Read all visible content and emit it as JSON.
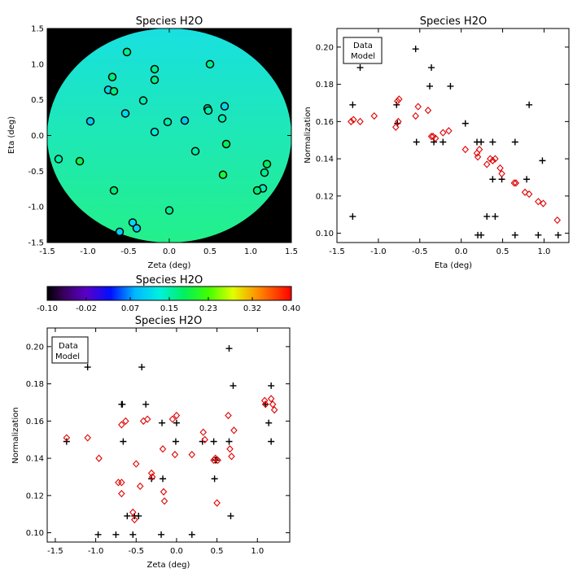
{
  "colors": {
    "data_marker": "#000000",
    "model_marker": "#e00000",
    "map_background": "#000000",
    "map_disk_top": "#19e0e0",
    "map_disk_bottom": "#23f08a",
    "map_circle_outline": "#000000"
  },
  "legend": {
    "data": "Data",
    "model": "Model"
  },
  "colorbar": {
    "title": "Species H2O",
    "min": -0.1,
    "max": 0.4,
    "colormap": "rainbow",
    "tick_labels": [
      "-0.10",
      "-0.02",
      "0.07",
      "0.15",
      "0.23",
      "0.32",
      "0.40"
    ]
  },
  "chart_data": [
    {
      "id": "map",
      "type": "scatter",
      "title": "Species H2O",
      "xlabel": "Zeta (deg)",
      "ylabel": "Eta (deg)",
      "xlim": [
        -1.5,
        1.5
      ],
      "ylim": [
        -1.5,
        1.5
      ],
      "x_ticks": [
        "-1.5",
        "-1.0",
        "-0.5",
        "0.0",
        "0.5",
        "1.0",
        "1.5"
      ],
      "y_ticks": [
        "-1.5",
        "-1.0",
        "-0.5",
        "0.0",
        "0.5",
        "1.0",
        "1.5"
      ],
      "background": "black outside circular field, green/cyan gradient inside",
      "points": [
        {
          "x": -0.52,
          "y": 1.17,
          "value": 0.16
        },
        {
          "x": -0.18,
          "y": 0.93,
          "value": 0.16
        },
        {
          "x": 0.5,
          "y": 1.0,
          "value": 0.16
        },
        {
          "x": -0.7,
          "y": 0.82,
          "value": 0.17
        },
        {
          "x": -0.18,
          "y": 0.78,
          "value": 0.16
        },
        {
          "x": -0.75,
          "y": 0.64,
          "value": 0.11
        },
        {
          "x": -0.68,
          "y": 0.62,
          "value": 0.17
        },
        {
          "x": -0.32,
          "y": 0.49,
          "value": 0.15
        },
        {
          "x": 0.68,
          "y": 0.41,
          "value": 0.11
        },
        {
          "x": 0.47,
          "y": 0.38,
          "value": 0.15
        },
        {
          "x": 0.48,
          "y": 0.35,
          "value": 0.15
        },
        {
          "x": -0.54,
          "y": 0.31,
          "value": 0.11
        },
        {
          "x": 0.65,
          "y": 0.24,
          "value": 0.15
        },
        {
          "x": -0.97,
          "y": 0.2,
          "value": 0.1
        },
        {
          "x": -0.02,
          "y": 0.19,
          "value": 0.15
        },
        {
          "x": 0.19,
          "y": 0.21,
          "value": 0.1
        },
        {
          "x": -0.18,
          "y": 0.05,
          "value": 0.13
        },
        {
          "x": 0.7,
          "y": -0.12,
          "value": 0.18
        },
        {
          "x": 0.32,
          "y": -0.22,
          "value": 0.15
        },
        {
          "x": -1.36,
          "y": -0.33,
          "value": 0.15
        },
        {
          "x": -1.1,
          "y": -0.36,
          "value": 0.19
        },
        {
          "x": 1.2,
          "y": -0.4,
          "value": 0.18
        },
        {
          "x": 1.17,
          "y": -0.52,
          "value": 0.16
        },
        {
          "x": 0.66,
          "y": -0.55,
          "value": 0.2
        },
        {
          "x": 1.15,
          "y": -0.74,
          "value": 0.15
        },
        {
          "x": 1.08,
          "y": -0.77,
          "value": 0.17
        },
        {
          "x": -0.68,
          "y": -0.77,
          "value": 0.17
        },
        {
          "x": 0.0,
          "y": -1.05,
          "value": 0.16
        },
        {
          "x": -0.45,
          "y": -1.22,
          "value": 0.11
        },
        {
          "x": -0.4,
          "y": -1.3,
          "value": 0.1
        },
        {
          "x": -0.61,
          "y": -1.35,
          "value": 0.1
        }
      ]
    },
    {
      "id": "eta",
      "type": "scatter",
      "title": "Species H2O",
      "xlabel": "Eta (deg)",
      "ylabel": "Normalization",
      "xlim": [
        -1.5,
        1.3
      ],
      "ylim": [
        0.095,
        0.21
      ],
      "x_ticks": [
        "-1.5",
        "-1.0",
        "-0.5",
        "0.0",
        "0.5",
        "1.0"
      ],
      "y_ticks": [
        "0.10",
        "0.12",
        "0.14",
        "0.16",
        "0.18",
        "0.20"
      ],
      "legend": "top-left",
      "series": [
        {
          "name": "Data",
          "marker": "plus",
          "points": [
            [
              -0.55,
              0.199
            ],
            [
              -1.22,
              0.189
            ],
            [
              -0.36,
              0.189
            ],
            [
              -0.38,
              0.179
            ],
            [
              -0.13,
              0.179
            ],
            [
              -1.31,
              0.169
            ],
            [
              -0.78,
              0.169
            ],
            [
              0.82,
              0.169
            ],
            [
              -0.77,
              0.159
            ],
            [
              0.05,
              0.159
            ],
            [
              -0.54,
              0.149
            ],
            [
              -0.33,
              0.149
            ],
            [
              -0.22,
              0.149
            ],
            [
              0.19,
              0.149
            ],
            [
              0.24,
              0.149
            ],
            [
              0.38,
              0.149
            ],
            [
              0.65,
              0.149
            ],
            [
              0.98,
              0.139
            ],
            [
              0.38,
              0.129
            ],
            [
              0.49,
              0.129
            ],
            [
              0.79,
              0.129
            ],
            [
              0.31,
              0.109
            ],
            [
              0.41,
              0.109
            ],
            [
              -1.31,
              0.109
            ],
            [
              0.2,
              0.099
            ],
            [
              0.24,
              0.099
            ],
            [
              0.65,
              0.099
            ],
            [
              0.93,
              0.099
            ],
            [
              1.17,
              0.099
            ]
          ]
        },
        {
          "name": "Model",
          "marker": "diamond",
          "points": [
            [
              -1.33,
              0.16
            ],
            [
              -1.3,
              0.161
            ],
            [
              -1.22,
              0.16
            ],
            [
              -1.05,
              0.163
            ],
            [
              -0.77,
              0.171
            ],
            [
              -0.75,
              0.172
            ],
            [
              -0.79,
              0.157
            ],
            [
              -0.76,
              0.16
            ],
            [
              -0.52,
              0.168
            ],
            [
              -0.55,
              0.163
            ],
            [
              -0.4,
              0.166
            ],
            [
              -0.36,
              0.152
            ],
            [
              -0.34,
              0.152
            ],
            [
              -0.31,
              0.151
            ],
            [
              -0.22,
              0.154
            ],
            [
              -0.15,
              0.155
            ],
            [
              0.05,
              0.145
            ],
            [
              0.19,
              0.143
            ],
            [
              0.2,
              0.141
            ],
            [
              0.22,
              0.145
            ],
            [
              0.31,
              0.137
            ],
            [
              0.35,
              0.14
            ],
            [
              0.38,
              0.139
            ],
            [
              0.41,
              0.14
            ],
            [
              0.47,
              0.135
            ],
            [
              0.49,
              0.132
            ],
            [
              0.64,
              0.127
            ],
            [
              0.66,
              0.127
            ],
            [
              0.77,
              0.122
            ],
            [
              0.82,
              0.121
            ],
            [
              0.93,
              0.117
            ],
            [
              0.99,
              0.116
            ],
            [
              1.16,
              0.107
            ]
          ]
        }
      ]
    },
    {
      "id": "zeta",
      "type": "scatter",
      "title": "Species H2O",
      "xlabel": "Zeta (deg)",
      "ylabel": "Normalization",
      "xlim": [
        -1.6,
        1.4
      ],
      "ylim": [
        0.095,
        0.21
      ],
      "x_ticks": [
        "-1.5",
        "-1.0",
        "-0.5",
        "0.0",
        "0.5",
        "1.0"
      ],
      "y_ticks": [
        "0.10",
        "0.12",
        "0.14",
        "0.16",
        "0.18",
        "0.20"
      ],
      "legend": "top-left",
      "series": [
        {
          "name": "Data",
          "marker": "plus",
          "points": [
            [
              0.65,
              0.199
            ],
            [
              -1.1,
              0.189
            ],
            [
              -0.43,
              0.189
            ],
            [
              0.7,
              0.179
            ],
            [
              1.17,
              0.179
            ],
            [
              -0.68,
              0.169
            ],
            [
              -0.67,
              0.169
            ],
            [
              -0.38,
              0.169
            ],
            [
              1.1,
              0.169
            ],
            [
              -0.18,
              0.159
            ],
            [
              0.0,
              0.159
            ],
            [
              1.14,
              0.159
            ],
            [
              -1.36,
              0.149
            ],
            [
              -0.66,
              0.149
            ],
            [
              -0.01,
              0.149
            ],
            [
              0.32,
              0.149
            ],
            [
              0.46,
              0.149
            ],
            [
              0.65,
              0.149
            ],
            [
              1.17,
              0.149
            ],
            [
              0.48,
              0.139
            ],
            [
              0.49,
              0.139
            ],
            [
              -0.31,
              0.129
            ],
            [
              -0.17,
              0.129
            ],
            [
              0.47,
              0.129
            ],
            [
              -0.61,
              0.109
            ],
            [
              -0.52,
              0.109
            ],
            [
              -0.47,
              0.109
            ],
            [
              0.67,
              0.109
            ],
            [
              -0.97,
              0.099
            ],
            [
              -0.75,
              0.099
            ],
            [
              -0.54,
              0.099
            ],
            [
              -0.19,
              0.099
            ],
            [
              0.19,
              0.099
            ]
          ]
        },
        {
          "name": "Model",
          "marker": "diamond",
          "points": [
            [
              -1.36,
              0.151
            ],
            [
              -1.1,
              0.151
            ],
            [
              -0.96,
              0.14
            ],
            [
              -0.72,
              0.127
            ],
            [
              -0.68,
              0.127
            ],
            [
              -0.68,
              0.121
            ],
            [
              -0.68,
              0.158
            ],
            [
              -0.63,
              0.16
            ],
            [
              -0.54,
              0.111
            ],
            [
              -0.52,
              0.107
            ],
            [
              -0.5,
              0.137
            ],
            [
              -0.45,
              0.125
            ],
            [
              -0.41,
              0.16
            ],
            [
              -0.36,
              0.161
            ],
            [
              -0.31,
              0.132
            ],
            [
              -0.3,
              0.13
            ],
            [
              -0.17,
              0.145
            ],
            [
              -0.16,
              0.122
            ],
            [
              -0.15,
              0.117
            ],
            [
              -0.05,
              0.161
            ],
            [
              0.0,
              0.163
            ],
            [
              -0.02,
              0.142
            ],
            [
              0.19,
              0.142
            ],
            [
              0.33,
              0.154
            ],
            [
              0.35,
              0.15
            ],
            [
              0.46,
              0.139
            ],
            [
              0.48,
              0.14
            ],
            [
              0.5,
              0.116
            ],
            [
              0.51,
              0.139
            ],
            [
              0.64,
              0.163
            ],
            [
              0.66,
              0.145
            ],
            [
              0.68,
              0.141
            ],
            [
              0.71,
              0.155
            ],
            [
              1.09,
              0.171
            ],
            [
              1.1,
              0.169
            ],
            [
              1.17,
              0.172
            ],
            [
              1.19,
              0.169
            ],
            [
              1.21,
              0.166
            ]
          ]
        }
      ]
    }
  ]
}
